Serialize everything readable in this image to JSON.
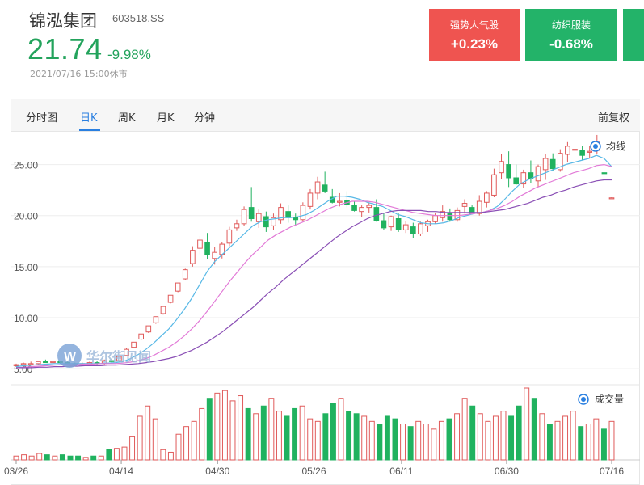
{
  "stock": {
    "name": "锦泓集团",
    "code": "603518.SS",
    "price": "21.74",
    "change": "-9.98%",
    "timestamp": "2021/07/16 15:00休市"
  },
  "cards": [
    {
      "label": "强势人气股",
      "value": "+0.23%",
      "color": "#ef5450"
    },
    {
      "label": "纺织服装",
      "value": "-0.68%",
      "color": "#23b369"
    }
  ],
  "tabs": [
    "分时图",
    "日K",
    "周K",
    "月K",
    "分钟"
  ],
  "active_tab": "日K",
  "adjust_label": "前复权",
  "legend": {
    "ma": "均线",
    "volume": "成交量"
  },
  "watermark": "华尔街见闻",
  "chart_data": {
    "type": "candlestick",
    "y_ticks": [
      "25.00",
      "20.00",
      "15.00",
      "10.00",
      "5.00"
    ],
    "y_tick_values": [
      25,
      20,
      15,
      10,
      5
    ],
    "ylim": [
      4.3,
      27.5
    ],
    "x_ticks": [
      {
        "label": "03/26",
        "index": 0
      },
      {
        "label": "04/14",
        "index": 12
      },
      {
        "label": "04/30",
        "index": 23
      },
      {
        "label": "05/26",
        "index": 34
      },
      {
        "label": "06/11",
        "index": 44
      },
      {
        "label": "06/30",
        "index": 56
      },
      {
        "label": "07/16",
        "index": 68
      }
    ],
    "candles": [
      {
        "o": 5.3,
        "h": 5.5,
        "l": 5.2,
        "c": 5.4
      },
      {
        "o": 5.4,
        "h": 5.6,
        "l": 5.3,
        "c": 5.5
      },
      {
        "o": 5.5,
        "h": 5.7,
        "l": 5.4,
        "c": 5.5
      },
      {
        "o": 5.5,
        "h": 5.8,
        "l": 5.4,
        "c": 5.7
      },
      {
        "o": 5.7,
        "h": 5.9,
        "l": 5.6,
        "c": 5.6
      },
      {
        "o": 5.6,
        "h": 5.8,
        "l": 5.5,
        "c": 5.7
      },
      {
        "o": 5.7,
        "h": 5.8,
        "l": 5.5,
        "c": 5.6
      },
      {
        "o": 5.6,
        "h": 5.7,
        "l": 5.4,
        "c": 5.5
      },
      {
        "o": 5.5,
        "h": 5.6,
        "l": 5.3,
        "c": 5.4
      },
      {
        "o": 5.4,
        "h": 5.6,
        "l": 5.3,
        "c": 5.5
      },
      {
        "o": 5.5,
        "h": 5.7,
        "l": 5.4,
        "c": 5.6
      },
      {
        "o": 5.6,
        "h": 5.8,
        "l": 5.4,
        "c": 5.5
      },
      {
        "o": 5.5,
        "h": 5.9,
        "l": 5.3,
        "c": 5.8
      },
      {
        "o": 5.8,
        "h": 6.0,
        "l": 5.6,
        "c": 5.7
      },
      {
        "o": 5.8,
        "h": 6.2,
        "l": 5.7,
        "c": 6.2
      },
      {
        "o": 6.3,
        "h": 7.0,
        "l": 6.2,
        "c": 6.9
      },
      {
        "o": 7.1,
        "h": 7.6,
        "l": 7.0,
        "c": 7.6
      },
      {
        "o": 7.9,
        "h": 8.4,
        "l": 7.8,
        "c": 8.4
      },
      {
        "o": 8.6,
        "h": 9.2,
        "l": 8.5,
        "c": 9.2
      },
      {
        "o": 9.5,
        "h": 10.1,
        "l": 9.4,
        "c": 10.1
      },
      {
        "o": 10.4,
        "h": 11.1,
        "l": 10.3,
        "c": 11.1
      },
      {
        "o": 11.5,
        "h": 12.2,
        "l": 11.4,
        "c": 12.2
      },
      {
        "o": 12.6,
        "h": 13.4,
        "l": 12.5,
        "c": 13.4
      },
      {
        "o": 13.8,
        "h": 14.8,
        "l": 13.7,
        "c": 14.7
      },
      {
        "o": 15.3,
        "h": 17.0,
        "l": 15.0,
        "c": 16.6
      },
      {
        "o": 16.8,
        "h": 18.0,
        "l": 16.2,
        "c": 17.6
      },
      {
        "o": 17.4,
        "h": 18.3,
        "l": 15.7,
        "c": 16.2
      },
      {
        "o": 15.8,
        "h": 16.9,
        "l": 15.2,
        "c": 16.4
      },
      {
        "o": 16.2,
        "h": 17.4,
        "l": 15.8,
        "c": 17.2
      },
      {
        "o": 17.3,
        "h": 18.9,
        "l": 17.0,
        "c": 18.6
      },
      {
        "o": 18.8,
        "h": 19.6,
        "l": 18.5,
        "c": 19.2
      },
      {
        "o": 19.2,
        "h": 20.9,
        "l": 19.0,
        "c": 20.6
      },
      {
        "o": 20.8,
        "h": 22.8,
        "l": 19.4,
        "c": 19.7
      },
      {
        "o": 19.4,
        "h": 20.6,
        "l": 18.8,
        "c": 20.2
      },
      {
        "o": 19.9,
        "h": 20.4,
        "l": 18.4,
        "c": 18.9
      },
      {
        "o": 19.0,
        "h": 20.2,
        "l": 18.6,
        "c": 19.8
      },
      {
        "o": 19.6,
        "h": 21.2,
        "l": 19.2,
        "c": 20.8
      },
      {
        "o": 20.4,
        "h": 21.0,
        "l": 19.3,
        "c": 19.8
      },
      {
        "o": 19.8,
        "h": 20.2,
        "l": 19.1,
        "c": 19.6
      },
      {
        "o": 19.6,
        "h": 21.3,
        "l": 19.4,
        "c": 21.0
      },
      {
        "o": 20.9,
        "h": 22.6,
        "l": 20.6,
        "c": 22.2
      },
      {
        "o": 22.2,
        "h": 23.8,
        "l": 21.6,
        "c": 23.3
      },
      {
        "o": 23.0,
        "h": 24.3,
        "l": 22.2,
        "c": 22.4
      },
      {
        "o": 21.8,
        "h": 22.6,
        "l": 21.2,
        "c": 21.3
      },
      {
        "o": 21.3,
        "h": 22.2,
        "l": 20.9,
        "c": 21.4
      }
    ],
    "candles_2": [
      {
        "o": 21.5,
        "h": 22.4,
        "l": 20.8,
        "c": 21.1
      },
      {
        "o": 21.0,
        "h": 21.4,
        "l": 20.4,
        "c": 20.5
      },
      {
        "o": 20.4,
        "h": 21.0,
        "l": 19.9,
        "c": 20.8
      },
      {
        "o": 20.8,
        "h": 21.3,
        "l": 20.3,
        "c": 21.0
      },
      {
        "o": 20.8,
        "h": 21.6,
        "l": 19.4,
        "c": 19.5
      },
      {
        "o": 19.5,
        "h": 20.2,
        "l": 18.6,
        "c": 18.8
      },
      {
        "o": 18.9,
        "h": 20.0,
        "l": 18.5,
        "c": 19.9
      },
      {
        "o": 19.7,
        "h": 20.2,
        "l": 18.4,
        "c": 18.6
      },
      {
        "o": 18.6,
        "h": 19.5,
        "l": 18.3,
        "c": 19.1
      },
      {
        "o": 18.9,
        "h": 19.3,
        "l": 17.8,
        "c": 18.2
      },
      {
        "o": 18.2,
        "h": 19.4,
        "l": 18.0,
        "c": 19.2
      },
      {
        "o": 19.0,
        "h": 19.6,
        "l": 18.4,
        "c": 19.4
      },
      {
        "o": 19.4,
        "h": 20.3,
        "l": 19.2,
        "c": 20.0
      },
      {
        "o": 19.8,
        "h": 21.0,
        "l": 19.4,
        "c": 20.4
      },
      {
        "o": 20.2,
        "h": 20.7,
        "l": 19.4,
        "c": 19.6
      },
      {
        "o": 19.6,
        "h": 20.8,
        "l": 19.4,
        "c": 20.5
      },
      {
        "o": 20.9,
        "h": 21.6,
        "l": 20.2,
        "c": 21.2
      },
      {
        "o": 20.8,
        "h": 21.0,
        "l": 20.1,
        "c": 20.2
      }
    ],
    "candles_3": [
      {
        "o": 20.2,
        "h": 22.0,
        "l": 20.0,
        "c": 21.4
      },
      {
        "o": 21.3,
        "h": 22.4,
        "l": 20.8,
        "c": 22.2
      },
      {
        "o": 22.0,
        "h": 24.6,
        "l": 21.8,
        "c": 24.0
      },
      {
        "o": 24.2,
        "h": 26.0,
        "l": 23.6,
        "c": 25.3
      },
      {
        "o": 25.0,
        "h": 26.3,
        "l": 22.8,
        "c": 23.7
      },
      {
        "o": 23.7,
        "h": 25.0,
        "l": 23.0,
        "c": 23.1
      },
      {
        "o": 23.1,
        "h": 24.5,
        "l": 22.7,
        "c": 24.2
      },
      {
        "o": 24.2,
        "h": 25.4,
        "l": 23.2,
        "c": 23.6
      },
      {
        "o": 23.4,
        "h": 25.0,
        "l": 22.8,
        "c": 24.8
      },
      {
        "o": 24.5,
        "h": 26.0,
        "l": 23.5,
        "c": 25.6
      },
      {
        "o": 25.5,
        "h": 26.1,
        "l": 24.4,
        "c": 24.6
      },
      {
        "o": 24.5,
        "h": 26.5,
        "l": 24.3,
        "c": 26.1
      },
      {
        "o": 26.0,
        "h": 27.2,
        "l": 25.2,
        "c": 26.8
      },
      {
        "o": 26.5,
        "h": 27.0,
        "l": 25.8,
        "c": 26.5
      },
      {
        "o": 26.4,
        "h": 26.8,
        "l": 25.4,
        "c": 25.9
      },
      {
        "o": 26.2,
        "h": 26.8,
        "l": 25.6,
        "c": 26.3
      },
      {
        "o": 26.4,
        "h": 27.9,
        "l": 26.0,
        "c": 27.2
      },
      {
        "o": 24.2,
        "h": 24.2,
        "l": 24.1,
        "c": 24.15
      },
      {
        "o": 21.74,
        "h": 21.8,
        "l": 21.7,
        "c": 21.74
      }
    ],
    "ma_series": [
      {
        "color": "#57b8e6",
        "values": [
          5.2,
          5.3,
          5.35,
          5.4,
          5.45,
          5.5,
          5.5,
          5.5,
          5.5,
          5.5,
          5.5,
          5.5,
          5.55,
          5.6,
          5.7,
          6.0,
          6.4,
          6.9,
          7.5,
          8.2,
          8.9,
          9.8,
          10.8,
          11.9,
          13.2,
          14.5,
          15.5,
          16.2,
          16.9,
          17.6,
          18.3,
          19.0,
          19.4,
          19.6,
          19.7,
          19.8,
          19.8,
          19.9,
          20.1,
          20.5,
          21.0,
          21.5,
          21.9,
          21.9,
          21.8,
          21.6,
          21.3,
          21.1,
          20.9,
          20.5,
          20.1,
          19.9,
          19.6,
          19.3,
          19.2,
          19.2,
          19.3,
          19.5,
          19.8,
          20.0,
          20.2,
          20.3,
          20.5,
          20.9,
          21.6,
          22.4,
          23.1,
          23.5,
          23.8,
          24.1,
          24.4,
          24.7,
          25.0,
          25.2,
          25.4,
          25.6,
          25.9,
          25.6,
          24.8
        ]
      },
      {
        "color": "#e27ad7",
        "values": [
          5.1,
          5.15,
          5.2,
          5.25,
          5.3,
          5.35,
          5.4,
          5.4,
          5.4,
          5.45,
          5.45,
          5.5,
          5.5,
          5.5,
          5.55,
          5.65,
          5.8,
          6.0,
          6.3,
          6.7,
          7.1,
          7.6,
          8.2,
          8.9,
          9.7,
          10.6,
          11.6,
          12.6,
          13.6,
          14.5,
          15.4,
          16.2,
          16.9,
          17.6,
          18.1,
          18.5,
          18.9,
          19.2,
          19.5,
          19.9,
          20.3,
          20.7,
          21.0,
          21.2,
          21.4,
          21.4,
          21.4,
          21.3,
          21.1,
          20.9,
          20.7,
          20.5,
          20.3,
          20.2,
          20.1,
          20.0,
          20.0,
          20.0,
          20.0,
          20.1,
          20.2,
          20.3,
          20.5,
          20.7,
          21.0,
          21.4,
          21.9,
          22.3,
          22.7,
          23.0,
          23.3,
          23.6,
          23.9,
          24.2,
          24.4,
          24.6,
          24.9,
          25.0,
          24.8
        ]
      },
      {
        "color": "#8a4fb5",
        "values": [
          5.1,
          5.1,
          5.1,
          5.15,
          5.15,
          5.2,
          5.2,
          5.25,
          5.25,
          5.3,
          5.3,
          5.3,
          5.35,
          5.35,
          5.4,
          5.45,
          5.5,
          5.6,
          5.7,
          5.85,
          6.0,
          6.2,
          6.5,
          6.8,
          7.2,
          7.6,
          8.1,
          8.6,
          9.2,
          9.8,
          10.4,
          11.0,
          11.7,
          12.4,
          13.0,
          13.7,
          14.3,
          14.9,
          15.5,
          16.1,
          16.7,
          17.3,
          17.9,
          18.4,
          18.9,
          19.3,
          19.7,
          20.0,
          20.2,
          20.4,
          20.5,
          20.5,
          20.5,
          20.5,
          20.4,
          20.4,
          20.3,
          20.3,
          20.3,
          20.3,
          20.3,
          20.3,
          20.4,
          20.5,
          20.6,
          20.8,
          21.0,
          21.2,
          21.5,
          21.8,
          22.0,
          22.3,
          22.5,
          22.8,
          23.0,
          23.2,
          23.4,
          23.5,
          23.5
        ]
      }
    ],
    "volumes": [
      3,
      4,
      3,
      5,
      4,
      3,
      4,
      3,
      3,
      2,
      3,
      3,
      8,
      9,
      10,
      18,
      34,
      42,
      32,
      8,
      6,
      20,
      26,
      30,
      40,
      48,
      52,
      54,
      46,
      50,
      40,
      36,
      42,
      48,
      38,
      34,
      40,
      42,
      32,
      30,
      36,
      44,
      48,
      38,
      36,
      34,
      30,
      28,
      34,
      32,
      28,
      26,
      30,
      28,
      24,
      30,
      32,
      36,
      48,
      42,
      36,
      30,
      34,
      38,
      34,
      42,
      56,
      48,
      36,
      28,
      30,
      34,
      38,
      26,
      28,
      32,
      24,
      30
    ]
  }
}
